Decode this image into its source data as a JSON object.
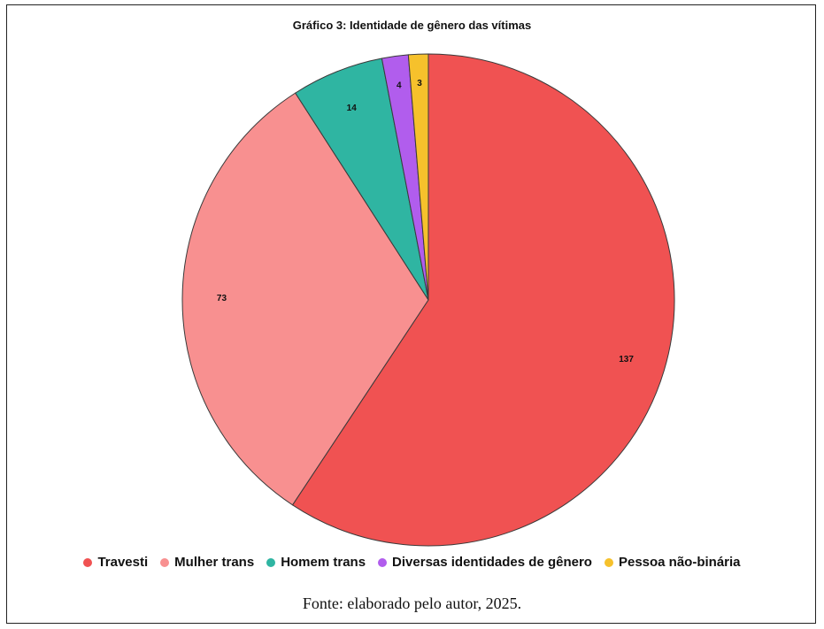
{
  "caption": "Fonte: elaborado pelo autor, 2025.",
  "chart_data": {
    "type": "pie",
    "title": "Gráfico 3: Identidade de gênero das vítimas",
    "categories": [
      "Travesti",
      "Mulher trans",
      "Homem trans",
      "Diversas identidades de gênero",
      "Pessoa não-binária"
    ],
    "values": [
      137,
      73,
      14,
      4,
      3
    ],
    "data_labels": [
      "137",
      "73",
      "14",
      "4",
      "3"
    ],
    "colors": [
      "#f05252",
      "#f89090",
      "#2fb5a2",
      "#b15ded",
      "#f6c12c"
    ],
    "legend_position": "bottom",
    "start": "top",
    "direction": "clockwise"
  }
}
